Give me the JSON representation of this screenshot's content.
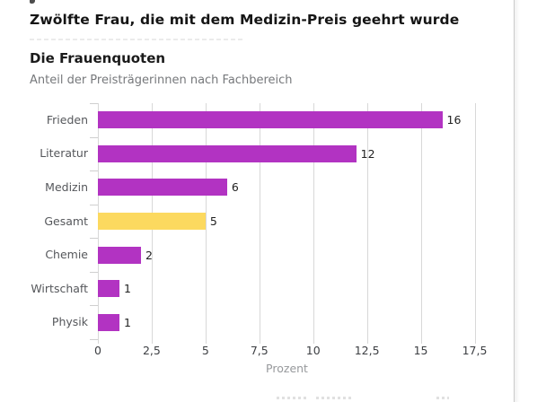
{
  "titles": {
    "main": "Zwölfte Frau, die mit dem Medizin-Preis geehrt wurde",
    "chart_title": "Die Frauenquoten",
    "chart_subtitle": "Anteil der Preisträgerinnen nach Fachbereich"
  },
  "chart_data": {
    "type": "bar",
    "orientation": "horizontal",
    "title": "Die Frauenquoten",
    "subtitle": "Anteil der Preisträgerinnen nach Fachbereich",
    "categories": [
      "Frieden",
      "Literatur",
      "Medizin",
      "Gesamt",
      "Chemie",
      "Wirtschaft",
      "Physik"
    ],
    "values": [
      16,
      12,
      6,
      5,
      2,
      1,
      1
    ],
    "value_labels": [
      "16",
      "12",
      "6",
      "5",
      "2",
      "1",
      "1"
    ],
    "bar_colors": [
      "#b233c2",
      "#b233c2",
      "#b233c2",
      "#fcd95f",
      "#b233c2",
      "#b233c2",
      "#b233c2"
    ],
    "highlight_category": "Gesamt",
    "xlabel": "Prozent",
    "xlim": [
      0,
      17.5
    ],
    "xticks": [
      0,
      2.5,
      5,
      7.5,
      10,
      12.5,
      15,
      17.5
    ],
    "xtick_labels": [
      "0",
      "2,5",
      "5",
      "7,5",
      "10",
      "12,5",
      "15",
      "17,5"
    ],
    "grid": "vertical-only",
    "legend": "none"
  },
  "colors": {
    "bar_default": "#b233c2",
    "bar_highlight": "#fcd95f",
    "gridline": "#d8d8d8",
    "category_label": "#55575b",
    "tick_label": "#3d3f43",
    "axis_title": "#97999c",
    "heading": "#151515",
    "subtitle": "#76787b"
  }
}
